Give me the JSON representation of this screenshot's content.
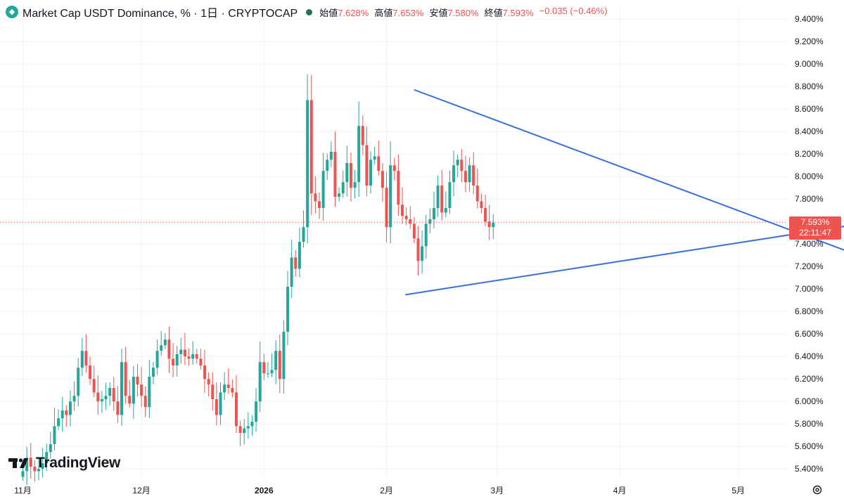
{
  "header": {
    "title": "Market Cap USDT Dominance, % · 1日 · CRYPTOCAP",
    "ohlc": [
      {
        "label": "始値",
        "value": "7.628%"
      },
      {
        "label": "高値",
        "value": "7.653%"
      },
      {
        "label": "安値",
        "value": "7.580%"
      },
      {
        "label": "終値",
        "value": "7.593%"
      }
    ],
    "change": "−0.035 (−0.46%)"
  },
  "price_tag": {
    "price": "7.593%",
    "countdown": "22:11:47"
  },
  "branding": {
    "wordmark": "TradingView"
  },
  "colors": {
    "up": "#26a69a",
    "down": "#ef5350",
    "trendline": "#2962ff",
    "last_price": "#ef5350"
  },
  "chart_data": {
    "type": "candlestick",
    "title": "Market Cap USDT Dominance, % · 1日 · CRYPTOCAP",
    "ylim": [
      5.32,
      9.52
    ],
    "y_ticks": [
      5.4,
      5.6,
      5.8,
      6.0,
      6.2,
      6.4,
      6.6,
      6.8,
      7.0,
      7.2,
      7.4,
      7.6,
      7.8,
      8.0,
      8.2,
      8.4,
      8.6,
      8.8,
      9.0,
      9.2,
      9.4
    ],
    "y_tick_labels": [
      "5.400%",
      "5.600%",
      "5.800%",
      "6.000%",
      "6.200%",
      "6.400%",
      "6.600%",
      "6.800%",
      "7.000%",
      "7.200%",
      "7.400%",
      "7.600%",
      "7.800%",
      "8.000%",
      "8.200%",
      "8.400%",
      "8.600%",
      "8.800%",
      "9.000%",
      "9.200%",
      "9.400%"
    ],
    "x_labels": [
      {
        "day": 0,
        "text": "11月",
        "bold": false
      },
      {
        "day": 30,
        "text": "12月",
        "bold": false
      },
      {
        "day": 61,
        "text": "2026",
        "bold": true
      },
      {
        "day": 92,
        "text": "2月",
        "bold": false
      },
      {
        "day": 120,
        "text": "3月",
        "bold": false
      },
      {
        "day": 151,
        "text": "4月",
        "bold": false
      },
      {
        "day": 181,
        "text": "5月",
        "bold": false
      }
    ],
    "last_price": 7.593,
    "closes": [
      5.38,
      5.5,
      5.42,
      5.38,
      5.4,
      5.45,
      5.55,
      5.62,
      5.78,
      5.85,
      5.92,
      5.88,
      6.0,
      6.05,
      6.3,
      6.45,
      6.32,
      6.2,
      6.08,
      6.0,
      6.02,
      6.05,
      6.12,
      6.0,
      5.88,
      6.35,
      6.05,
      5.98,
      6.22,
      6.15,
      6.05,
      5.95,
      6.22,
      6.3,
      6.45,
      6.5,
      6.55,
      6.38,
      6.32,
      6.42,
      6.46,
      6.4,
      6.38,
      6.42,
      6.38,
      6.32,
      6.2,
      6.15,
      6.02,
      5.88,
      6.08,
      6.15,
      6.12,
      6.08,
      5.78,
      5.72,
      5.76,
      5.78,
      5.82,
      6.0,
      6.35,
      6.25,
      6.25,
      6.28,
      6.45,
      6.2,
      6.62,
      7.02,
      7.28,
      7.18,
      7.42,
      7.55,
      8.68,
      7.85,
      7.78,
      7.72,
      8.05,
      8.15,
      8.22,
      7.82,
      7.85,
      7.95,
      8.12,
      7.9,
      7.95,
      8.45,
      8.28,
      7.92,
      8.15,
      8.18,
      8.05,
      7.9,
      7.55,
      8.1,
      8.05,
      7.75,
      7.65,
      7.62,
      7.58,
      7.45,
      7.25,
      7.38,
      7.58,
      7.62,
      7.72,
      7.92,
      7.68,
      7.72,
      7.95,
      8.1,
      8.15,
      8.05,
      7.95,
      8.1,
      7.92,
      7.78,
      7.72,
      7.6,
      7.55,
      7.59
    ],
    "series": [
      {
        "name": "Descending trendline",
        "points": [
          {
            "day": 99.1,
            "value": 8.77
          },
          {
            "day": 211.3,
            "value": 7.3
          }
        ]
      },
      {
        "name": "Ascending trendline",
        "points": [
          {
            "day": 96.9,
            "value": 6.95
          },
          {
            "day": 208.3,
            "value": 7.56
          }
        ]
      }
    ]
  }
}
